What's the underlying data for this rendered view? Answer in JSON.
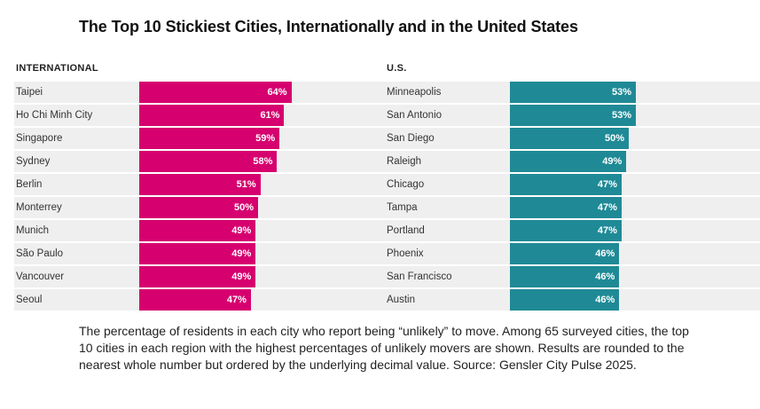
{
  "title": "The Top 10 Stickiest Cities, Internationally and in the United States",
  "caption": "The percentage of residents in each city who report being “unlikely” to move. Among 65 surveyed cities, the top 10 cities in each region with the highest percentages of unlikely movers are shown. Results are rounded to the nearest whole number but ordered by the underlying decimal value. Source: Gensler City Pulse 2025.",
  "colors": {
    "international": "#d6006f",
    "us": "#1f8a96",
    "track": "#efefef"
  },
  "chart_data": [
    {
      "type": "bar",
      "orientation": "horizontal",
      "title": "INTERNATIONAL",
      "categories": [
        "Taipei",
        "Ho Chi Minh City",
        "Singapore",
        "Sydney",
        "Berlin",
        "Monterrey",
        "Munich",
        "São Paulo",
        "Vancouver",
        "Seoul"
      ],
      "values": [
        64,
        61,
        59,
        58,
        51,
        50,
        49,
        49,
        49,
        47
      ],
      "value_labels": [
        "64%",
        "61%",
        "59%",
        "58%",
        "51%",
        "50%",
        "49%",
        "49%",
        "49%",
        "47%"
      ],
      "unit": "%",
      "xlim": [
        0,
        100
      ],
      "grid": false,
      "legend": "none"
    },
    {
      "type": "bar",
      "orientation": "horizontal",
      "title": "U.S.",
      "categories": [
        "Minneapolis",
        "San Antonio",
        "San Diego",
        "Raleigh",
        "Chicago",
        "Tampa",
        "Portland",
        "Phoenix",
        "San Francisco",
        "Austin"
      ],
      "values": [
        53,
        53,
        50,
        49,
        47,
        47,
        47,
        46,
        46,
        46
      ],
      "value_labels": [
        "53%",
        "53%",
        "50%",
        "49%",
        "47%",
        "47%",
        "47%",
        "46%",
        "46%",
        "46%"
      ],
      "unit": "%",
      "xlim": [
        0,
        100
      ],
      "grid": false,
      "legend": "none"
    }
  ]
}
